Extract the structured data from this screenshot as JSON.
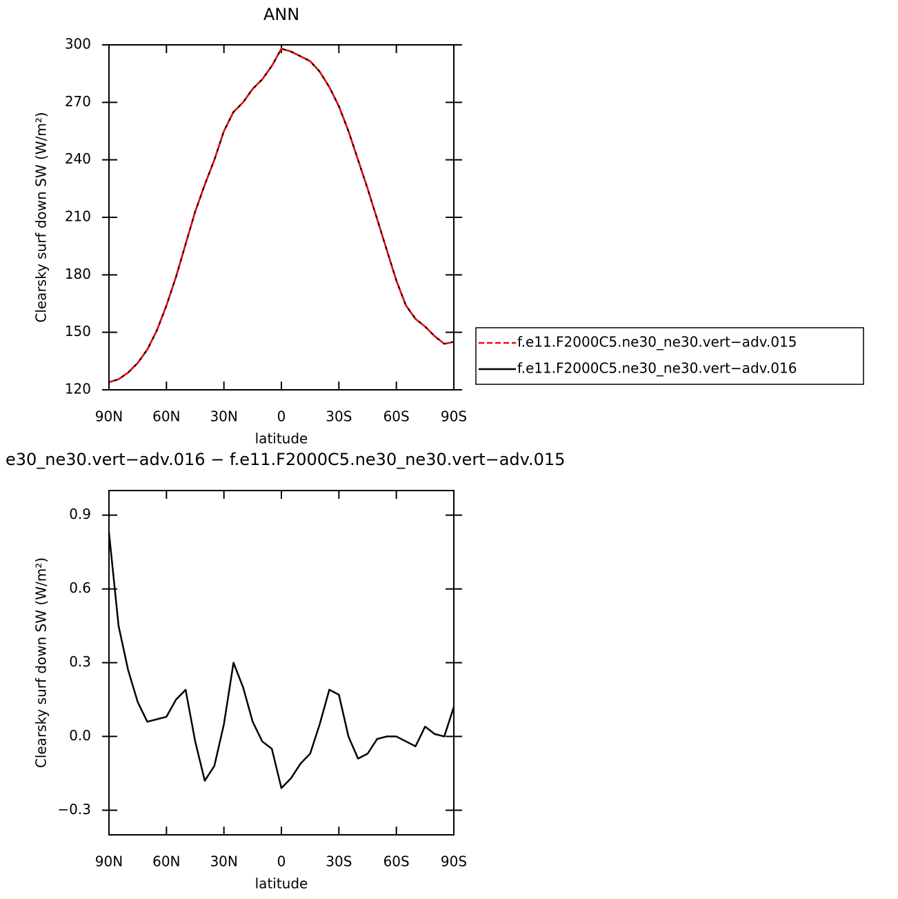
{
  "chart_data": [
    {
      "type": "line",
      "title": "ANN",
      "xlabel": "latitude",
      "ylabel": "Clearsky surf down SW (W/m²)",
      "x": [
        90,
        85,
        80,
        75,
        70,
        65,
        60,
        55,
        50,
        45,
        40,
        35,
        30,
        25,
        20,
        15,
        10,
        5,
        0,
        -5,
        -10,
        -15,
        -20,
        -25,
        -30,
        -35,
        -40,
        -45,
        -50,
        -55,
        -60,
        -65,
        -70,
        -75,
        -80,
        -85,
        -90
      ],
      "xlim": [
        90,
        -90
      ],
      "xticks": [
        {
          "value": 90,
          "label": "90N"
        },
        {
          "value": 60,
          "label": "60N"
        },
        {
          "value": 30,
          "label": "30N"
        },
        0,
        {
          "value": -30,
          "label": "30S"
        },
        {
          "value": -60,
          "label": "60S"
        },
        {
          "value": -90,
          "label": "90S"
        }
      ],
      "ylim": [
        120,
        300
      ],
      "yticks": [
        120,
        150,
        180,
        210,
        240,
        270,
        300
      ],
      "legend": "right",
      "series": [
        {
          "name": "f.e11.F2000C5.ne30_ne30.vert−adv.015",
          "color": "#ff0000",
          "line_style": "dashed",
          "values": [
            124,
            125.5,
            129,
            134,
            141,
            151,
            164,
            179,
            196,
            213,
            227,
            240,
            255,
            265,
            270,
            277,
            282,
            289,
            298,
            296.5,
            294,
            291.5,
            286,
            278,
            268,
            255,
            240,
            225,
            209,
            193,
            177,
            164,
            157,
            153,
            148,
            144,
            145
          ]
        },
        {
          "name": "f.e11.F2000C5.ne30_ne30.vert−adv.016",
          "color": "#000000",
          "line_style": "solid",
          "values": [
            124,
            125.5,
            129,
            134,
            141,
            151,
            164,
            179,
            196,
            213,
            227,
            240,
            255,
            265,
            270,
            277,
            282,
            289,
            298,
            296.5,
            294,
            291.5,
            286,
            278,
            268,
            255,
            240,
            225,
            209,
            193,
            177,
            164,
            157,
            153,
            148,
            144,
            145
          ]
        }
      ]
    },
    {
      "type": "line",
      "title": "e30_ne30.vert−adv.016 − f.e11.F2000C5.ne30_ne30.vert−adv.015",
      "xlabel": "latitude",
      "ylabel": "Clearsky surf down SW (W/m²)",
      "x": [
        90,
        85,
        80,
        75,
        70,
        65,
        60,
        55,
        50,
        45,
        40,
        35,
        30,
        25,
        20,
        15,
        10,
        5,
        0,
        -5,
        -10,
        -15,
        -20,
        -25,
        -30,
        -35,
        -40,
        -45,
        -50,
        -55,
        -60,
        -65,
        -70,
        -75,
        -80,
        -85,
        -90
      ],
      "xlim": [
        90,
        -90
      ],
      "xticks": [
        {
          "value": 90,
          "label": "90N"
        },
        {
          "value": 60,
          "label": "60N"
        },
        {
          "value": 30,
          "label": "30N"
        },
        0,
        {
          "value": -30,
          "label": "30S"
        },
        {
          "value": -60,
          "label": "60S"
        },
        {
          "value": -90,
          "label": "90S"
        }
      ],
      "ylim": [
        -0.4,
        1.0
      ],
      "yticks": [
        {
          "value": -0.3,
          "label": "−0.3"
        },
        {
          "value": 0,
          "label": "0.0"
        },
        0.3,
        0.6,
        0.9
      ],
      "series": [
        {
          "color": "#000000",
          "line_style": "solid",
          "values": [
            0.83,
            0.45,
            0.27,
            0.14,
            0.06,
            0.07,
            0.08,
            0.15,
            0.19,
            -0.02,
            -0.18,
            -0.12,
            0.05,
            0.3,
            0.2,
            0.06,
            -0.02,
            -0.05,
            -0.21,
            -0.17,
            -0.11,
            -0.07,
            0.05,
            0.19,
            0.17,
            0.0,
            -0.09,
            -0.07,
            -0.01,
            0.0,
            0.0,
            -0.02,
            -0.04,
            0.04,
            0.01,
            0.0,
            0.12
          ]
        }
      ]
    }
  ]
}
